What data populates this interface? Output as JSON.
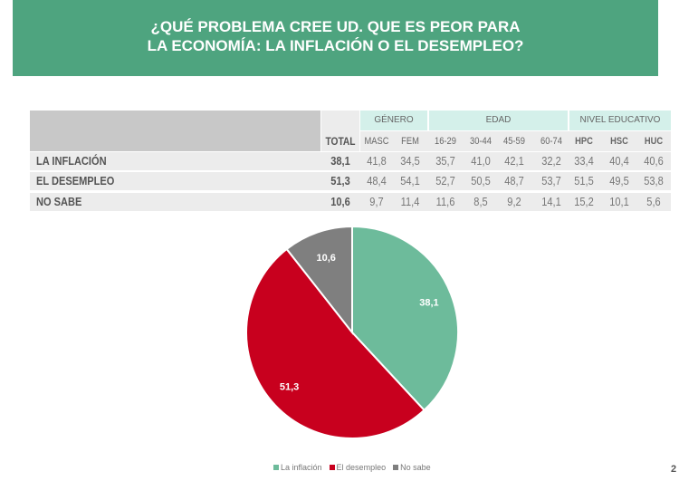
{
  "title": {
    "line1": "¿QUÉ PROBLEMA CREE UD. QUE ES PEOR PARA",
    "line2": "LA ECONOMÍA: LA INFLACIÓN O EL DESEMPLEO?"
  },
  "table": {
    "groups": [
      "GÉNERO",
      "EDAD",
      "NIVEL EDUCATIVO"
    ],
    "columns": [
      "TOTAL",
      "MASC",
      "FEM",
      "16-29",
      "30-44",
      "45-59",
      "60-74",
      "HPC",
      "HSC",
      "HUC"
    ],
    "rows": [
      {
        "label": "LA INFLACIÓN",
        "values": [
          "38,1",
          "41,8",
          "34,5",
          "35,7",
          "41,0",
          "42,1",
          "32,2",
          "33,4",
          "40,4",
          "40,6"
        ]
      },
      {
        "label": "EL DESEMPLEO",
        "values": [
          "51,3",
          "48,4",
          "54,1",
          "52,7",
          "50,5",
          "48,7",
          "53,7",
          "51,5",
          "49,5",
          "53,8"
        ]
      },
      {
        "label": "NO SABE",
        "values": [
          "10,6",
          "9,7",
          "11,4",
          "11,6",
          "8,5",
          "9,2",
          "14,1",
          "15,2",
          "10,1",
          "5,6"
        ]
      }
    ]
  },
  "chart_data": {
    "type": "pie",
    "categories": [
      "La inflación",
      "El desempleo",
      "No sabe"
    ],
    "values": [
      38.1,
      51.3,
      10.6
    ],
    "labels": [
      "38,1",
      "51,3",
      "10,6"
    ],
    "colors": [
      "#6dbb9b",
      "#c8001e",
      "#7f7f7f"
    ],
    "legend": "bottom"
  },
  "page_number": "2"
}
